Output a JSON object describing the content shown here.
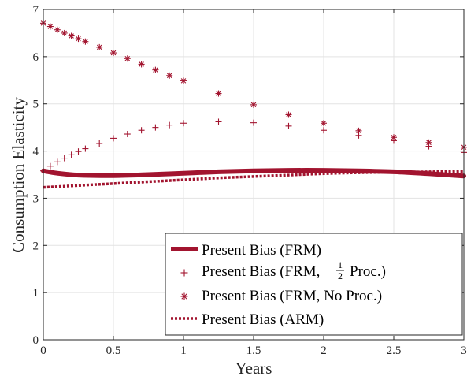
{
  "chart_data": {
    "type": "line",
    "xlabel": "Years",
    "ylabel": "Consumption Elasticity",
    "xlim": [
      0,
      3
    ],
    "ylim": [
      0,
      7
    ],
    "xticks": [
      0,
      0.5,
      1,
      1.5,
      2,
      2.5,
      3
    ],
    "xtick_labels": [
      "0",
      "0.5",
      "1",
      "1.5",
      "2",
      "2.5",
      "3"
    ],
    "yticks": [
      0,
      1,
      2,
      3,
      4,
      5,
      6,
      7
    ],
    "ytick_labels": [
      "0",
      "1",
      "2",
      "3",
      "4",
      "5",
      "6",
      "7"
    ],
    "grid": true,
    "legend_position": "bottom-right",
    "color": "#a2142f",
    "series": [
      {
        "name": "Present Bias (FRM)",
        "style": "thick-solid-line",
        "x": [
          0,
          0.1,
          0.25,
          0.5,
          0.75,
          1,
          1.25,
          1.5,
          1.75,
          2,
          2.25,
          2.5,
          2.75,
          3
        ],
        "y": [
          3.58,
          3.53,
          3.49,
          3.48,
          3.5,
          3.53,
          3.56,
          3.58,
          3.59,
          3.59,
          3.58,
          3.56,
          3.52,
          3.47
        ]
      },
      {
        "name_prefix": "Present Bias (FRM,",
        "name_frac_num": "1",
        "name_frac_den": "2",
        "name_suffix": "Proc.)",
        "style": "plus-markers",
        "x": [
          0,
          0.05,
          0.1,
          0.15,
          0.2,
          0.25,
          0.3,
          0.4,
          0.5,
          0.6,
          0.7,
          0.8,
          0.9,
          1,
          1.25,
          1.5,
          1.75,
          2,
          2.25,
          2.5,
          2.75,
          3
        ],
        "y": [
          3.58,
          3.68,
          3.77,
          3.85,
          3.92,
          3.99,
          4.05,
          4.16,
          4.27,
          4.36,
          4.44,
          4.5,
          4.55,
          4.59,
          4.62,
          4.6,
          4.53,
          4.44,
          4.33,
          4.22,
          4.1,
          3.97
        ]
      },
      {
        "name": "Present Bias (FRM, No Proc.)",
        "style": "asterisk-markers",
        "x": [
          0,
          0.05,
          0.1,
          0.15,
          0.2,
          0.25,
          0.3,
          0.4,
          0.5,
          0.6,
          0.7,
          0.8,
          0.9,
          1,
          1.25,
          1.5,
          1.75,
          2,
          2.25,
          2.5,
          2.75,
          3
        ],
        "y": [
          6.71,
          6.64,
          6.57,
          6.5,
          6.44,
          6.38,
          6.32,
          6.2,
          6.08,
          5.96,
          5.84,
          5.72,
          5.6,
          5.49,
          5.22,
          4.98,
          4.77,
          4.59,
          4.43,
          4.29,
          4.18,
          4.08
        ]
      },
      {
        "name": "Present Bias (ARM)",
        "style": "dotted-line",
        "x": [
          0,
          0.25,
          0.5,
          0.75,
          1,
          1.25,
          1.5,
          1.75,
          2,
          2.25,
          2.5,
          2.75,
          3
        ],
        "y": [
          3.23,
          3.27,
          3.31,
          3.35,
          3.39,
          3.43,
          3.46,
          3.49,
          3.52,
          3.54,
          3.55,
          3.56,
          3.57
        ]
      }
    ]
  }
}
